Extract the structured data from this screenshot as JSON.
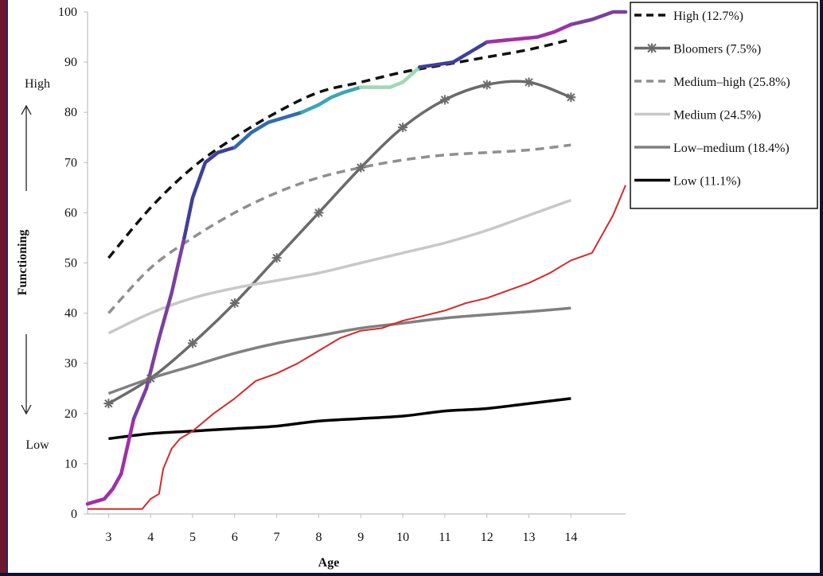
{
  "chart_data": {
    "type": "line",
    "title": "",
    "xlabel": "Age",
    "ylabel": "Functioning",
    "xlim": [
      2.5,
      15.3
    ],
    "ylim": [
      0,
      100
    ],
    "x_ticks": [
      "3",
      "4",
      "5",
      "6",
      "7",
      "8",
      "9",
      "10",
      "11",
      "12",
      "13",
      "14"
    ],
    "y_ticks": [
      "0",
      "10",
      "20",
      "30",
      "40",
      "50",
      "60",
      "70",
      "80",
      "90",
      "100"
    ],
    "side_labels": {
      "high": "High",
      "low": "Low"
    },
    "legend_position": "top-right",
    "grid": false,
    "series": [
      {
        "name": "High (12.7%)",
        "color": "#111111",
        "dash": "dashed",
        "marker": "none",
        "x": [
          3,
          4,
          5,
          6,
          7,
          8,
          9,
          10,
          11,
          12,
          13,
          14
        ],
        "y": [
          51,
          61,
          69,
          75,
          80,
          84,
          86,
          88,
          89.5,
          91,
          92.5,
          94.5
        ]
      },
      {
        "name": "Bloomers (7.5%)",
        "color": "#6b6b6b",
        "dash": "solid",
        "marker": "star",
        "x": [
          3,
          4,
          5,
          6,
          7,
          8,
          9,
          10,
          11,
          12,
          13,
          14
        ],
        "y": [
          22,
          27,
          34,
          42,
          51,
          60,
          69,
          77,
          82.5,
          85.5,
          86,
          83
        ]
      },
      {
        "name": "Medium–high (25.8%)",
        "color": "#8f8f8f",
        "dash": "dashed",
        "marker": "none",
        "x": [
          3,
          4,
          5,
          6,
          7,
          8,
          9,
          10,
          11,
          12,
          13,
          14
        ],
        "y": [
          40,
          49,
          55,
          60,
          64,
          67,
          69,
          70.5,
          71.5,
          72,
          72.5,
          73.5
        ]
      },
      {
        "name": "Medium (24.5%)",
        "color": "#c8c8c8",
        "dash": "solid",
        "marker": "none",
        "x": [
          3,
          4,
          5,
          6,
          7,
          8,
          9,
          10,
          11,
          12,
          13,
          14
        ],
        "y": [
          36,
          40,
          43,
          45,
          46.5,
          48,
          50,
          52,
          54,
          56.5,
          59.5,
          62.5
        ]
      },
      {
        "name": "Low–medium (18.4%)",
        "color": "#808080",
        "dash": "solid",
        "marker": "none",
        "x": [
          3,
          4,
          5,
          6,
          7,
          8,
          9,
          10,
          11,
          12,
          13,
          14
        ],
        "y": [
          24,
          27,
          29.5,
          32,
          34,
          35.5,
          37,
          38,
          39,
          39.7,
          40.3,
          41
        ]
      },
      {
        "name": "Low (11.1%)",
        "color": "#000000",
        "dash": "solid",
        "marker": "none",
        "x": [
          3,
          4,
          5,
          6,
          7,
          8,
          9,
          10,
          11,
          12,
          13,
          14
        ],
        "y": [
          15,
          16,
          16.5,
          17,
          17.5,
          18.5,
          19,
          19.5,
          20.5,
          21,
          22,
          23
        ]
      },
      {
        "color": "#d42a2a",
        "dash": "solid",
        "marker": "none",
        "in_legend": false,
        "x": [
          2.5,
          3.8,
          4.0,
          4.2,
          4.3,
          4.5,
          4.7,
          5,
          5.5,
          6,
          6.5,
          7,
          7.5,
          8,
          8.5,
          9,
          9.5,
          10,
          10.5,
          11,
          11.5,
          12,
          12.5,
          13,
          13.5,
          14,
          14.5,
          15,
          15.3
        ],
        "y": [
          1,
          1,
          3,
          4,
          9,
          13,
          15,
          16.5,
          20,
          23,
          26.5,
          28,
          30,
          32.5,
          35,
          36.5,
          37,
          38.5,
          39.5,
          40.5,
          42,
          43,
          44.5,
          46,
          48,
          50.5,
          52,
          59.5,
          65.5
        ]
      },
      {
        "color": "#6f3a8f",
        "dash": "solid",
        "marker": "none",
        "in_legend": false,
        "colors": [
          "#a02fa8",
          "#7b3fa0",
          "#3f3f9a",
          "#2f6db0",
          "#3aa5b5",
          "#9fd8b5",
          "#3f3f9a",
          "#a02fa8",
          "#7b3fa0",
          "#3aa5b5",
          "#9fd8b5"
        ],
        "x": [
          2.5,
          2.9,
          3.1,
          3.3,
          3.6,
          3.9,
          4.2,
          4.5,
          4.8,
          5.0,
          5.3,
          5.6,
          6.0,
          6.4,
          6.8,
          7.2,
          7.6,
          8.0,
          8.3,
          8.6,
          9.0,
          9.3,
          9.7,
          10.0,
          10.4,
          10.8,
          11.2,
          11.6,
          12.0,
          12.6,
          13.2,
          13.6,
          14.0,
          14.5,
          15.0,
          15.3
        ],
        "y": [
          2,
          3,
          5,
          8,
          19,
          25,
          35,
          44,
          55,
          63,
          70,
          72,
          73,
          76,
          78,
          79,
          80,
          81.5,
          83,
          84,
          85,
          85,
          85,
          86,
          89,
          89.5,
          90,
          92,
          94,
          94.5,
          95,
          96,
          97.5,
          98.5,
          100,
          100
        ]
      }
    ]
  }
}
